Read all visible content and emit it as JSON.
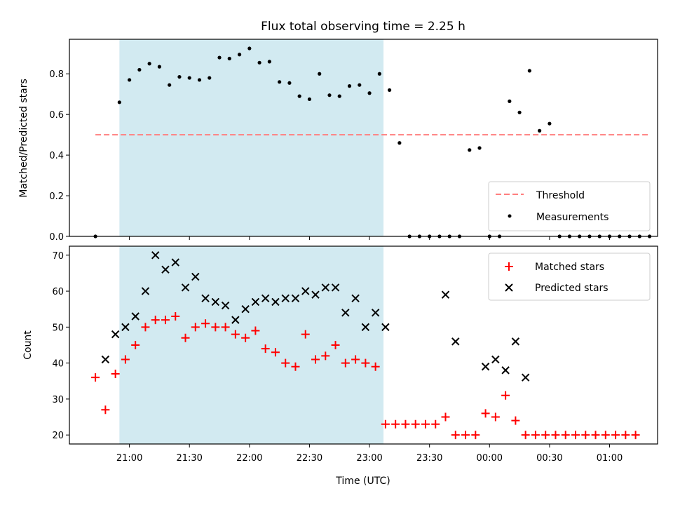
{
  "figure": {
    "title": "Flux total observing time = 2.25 h",
    "xlabel": "Time (UTC)"
  },
  "colors": {
    "shade": "#add8e6",
    "threshold": "#ff7f7f",
    "measurement": "#000000",
    "matched": "#ff0000",
    "predicted": "#000000"
  },
  "chart_data": [
    {
      "type": "scatter",
      "ylabel": "Matched/Predicted stars",
      "xlim": [
        "20:30",
        "01:24"
      ],
      "ylim": [
        0,
        0.97
      ],
      "grid": false,
      "legend_position": "lower-right",
      "shaded_interval": [
        "20:55",
        "23:07"
      ],
      "yticks": [
        "0.0",
        "0.2",
        "0.4",
        "0.6",
        "0.8"
      ],
      "threshold": {
        "name": "Threshold",
        "value": 0.5,
        "x_range": [
          "20:43",
          "01:20"
        ]
      },
      "series": [
        {
          "name": "Measurements",
          "points": [
            [
              "20:43",
              0.0
            ],
            [
              "20:55",
              0.66
            ],
            [
              "21:00",
              0.77
            ],
            [
              "21:05",
              0.82
            ],
            [
              "21:10",
              0.85
            ],
            [
              "21:15",
              0.835
            ],
            [
              "21:20",
              0.745
            ],
            [
              "21:25",
              0.785
            ],
            [
              "21:30",
              0.78
            ],
            [
              "21:35",
              0.77
            ],
            [
              "21:40",
              0.78
            ],
            [
              "21:45",
              0.88
            ],
            [
              "21:50",
              0.875
            ],
            [
              "21:55",
              0.895
            ],
            [
              "22:00",
              0.925
            ],
            [
              "22:05",
              0.855
            ],
            [
              "22:10",
              0.86
            ],
            [
              "22:15",
              0.76
            ],
            [
              "22:20",
              0.755
            ],
            [
              "22:25",
              0.69
            ],
            [
              "22:30",
              0.675
            ],
            [
              "22:35",
              0.8
            ],
            [
              "22:40",
              0.695
            ],
            [
              "22:45",
              0.69
            ],
            [
              "22:50",
              0.74
            ],
            [
              "22:55",
              0.745
            ],
            [
              "23:00",
              0.705
            ],
            [
              "23:05",
              0.8
            ],
            [
              "23:10",
              0.72
            ],
            [
              "23:15",
              0.46
            ],
            [
              "23:20",
              0.0
            ],
            [
              "23:25",
              0.0
            ],
            [
              "23:30",
              0.0
            ],
            [
              "23:35",
              0.0
            ],
            [
              "23:40",
              0.0
            ],
            [
              "23:45",
              0.0
            ],
            [
              "23:50",
              0.425
            ],
            [
              "23:55",
              0.435
            ],
            [
              "00:00",
              0.0
            ],
            [
              "00:05",
              0.0
            ],
            [
              "00:10",
              0.665
            ],
            [
              "00:15",
              0.61
            ],
            [
              "00:20",
              0.815
            ],
            [
              "00:25",
              0.52
            ],
            [
              "00:30",
              0.555
            ],
            [
              "00:35",
              0.0
            ],
            [
              "00:40",
              0.0
            ],
            [
              "00:45",
              0.0
            ],
            [
              "00:50",
              0.0
            ],
            [
              "00:55",
              0.0
            ],
            [
              "01:00",
              0.0
            ],
            [
              "01:05",
              0.0
            ],
            [
              "01:10",
              0.0
            ],
            [
              "01:15",
              0.0
            ],
            [
              "01:20",
              0.0
            ]
          ]
        }
      ]
    },
    {
      "type": "scatter",
      "ylabel": "Count",
      "xlim": [
        "20:30",
        "01:24"
      ],
      "ylim": [
        17.5,
        72.5
      ],
      "grid": false,
      "legend_position": "upper-right",
      "shaded_interval": [
        "20:55",
        "23:07"
      ],
      "yticks": [
        "20",
        "30",
        "40",
        "50",
        "60",
        "70"
      ],
      "xticks": [
        "21:00",
        "21:30",
        "22:00",
        "22:30",
        "23:00",
        "23:30",
        "00:00",
        "00:30",
        "01:00"
      ],
      "series": [
        {
          "name": "Matched stars",
          "marker": "plus",
          "points": [
            [
              "20:43",
              36
            ],
            [
              "20:48",
              27
            ],
            [
              "20:53",
              37
            ],
            [
              "20:58",
              41
            ],
            [
              "21:03",
              45
            ],
            [
              "21:08",
              50
            ],
            [
              "21:13",
              52
            ],
            [
              "21:18",
              52
            ],
            [
              "21:23",
              53
            ],
            [
              "21:28",
              47
            ],
            [
              "21:33",
              50
            ],
            [
              "21:38",
              51
            ],
            [
              "21:43",
              50
            ],
            [
              "21:48",
              50
            ],
            [
              "21:53",
              48
            ],
            [
              "21:58",
              47
            ],
            [
              "22:03",
              49
            ],
            [
              "22:08",
              44
            ],
            [
              "22:13",
              43
            ],
            [
              "22:18",
              40
            ],
            [
              "22:23",
              39
            ],
            [
              "22:28",
              48
            ],
            [
              "22:33",
              41
            ],
            [
              "22:38",
              42
            ],
            [
              "22:43",
              45
            ],
            [
              "22:48",
              40
            ],
            [
              "22:53",
              41
            ],
            [
              "22:58",
              40
            ],
            [
              "23:03",
              39
            ],
            [
              "23:08",
              23
            ],
            [
              "23:13",
              23
            ],
            [
              "23:18",
              23
            ],
            [
              "23:23",
              23
            ],
            [
              "23:28",
              23
            ],
            [
              "23:33",
              23
            ],
            [
              "23:38",
              25
            ],
            [
              "23:43",
              20
            ],
            [
              "23:48",
              20
            ],
            [
              "23:53",
              20
            ],
            [
              "23:58",
              26
            ],
            [
              "00:03",
              25
            ],
            [
              "00:08",
              31
            ],
            [
              "00:13",
              24
            ],
            [
              "00:18",
              20
            ],
            [
              "00:23",
              20
            ],
            [
              "00:28",
              20
            ],
            [
              "00:33",
              20
            ],
            [
              "00:38",
              20
            ],
            [
              "00:43",
              20
            ],
            [
              "00:48",
              20
            ],
            [
              "00:53",
              20
            ],
            [
              "00:58",
              20
            ],
            [
              "01:03",
              20
            ],
            [
              "01:08",
              20
            ],
            [
              "01:13",
              20
            ]
          ]
        },
        {
          "name": "Predicted stars",
          "marker": "x",
          "points": [
            [
              "20:48",
              41
            ],
            [
              "20:53",
              48
            ],
            [
              "20:58",
              50
            ],
            [
              "21:03",
              53
            ],
            [
              "21:08",
              60
            ],
            [
              "21:13",
              70
            ],
            [
              "21:18",
              66
            ],
            [
              "21:23",
              68
            ],
            [
              "21:28",
              61
            ],
            [
              "21:33",
              64
            ],
            [
              "21:38",
              58
            ],
            [
              "21:43",
              57
            ],
            [
              "21:48",
              56
            ],
            [
              "21:53",
              52
            ],
            [
              "21:58",
              55
            ],
            [
              "22:03",
              57
            ],
            [
              "22:08",
              58
            ],
            [
              "22:13",
              57
            ],
            [
              "22:18",
              58
            ],
            [
              "22:23",
              58
            ],
            [
              "22:28",
              60
            ],
            [
              "22:33",
              59
            ],
            [
              "22:38",
              61
            ],
            [
              "22:43",
              61
            ],
            [
              "22:48",
              54
            ],
            [
              "22:53",
              58
            ],
            [
              "22:58",
              50
            ],
            [
              "23:03",
              54
            ],
            [
              "23:08",
              50
            ],
            [
              "23:38",
              59
            ],
            [
              "23:43",
              46
            ],
            [
              "23:58",
              39
            ],
            [
              "00:03",
              41
            ],
            [
              "00:08",
              38
            ],
            [
              "00:13",
              46
            ],
            [
              "00:18",
              36
            ]
          ]
        }
      ]
    }
  ]
}
